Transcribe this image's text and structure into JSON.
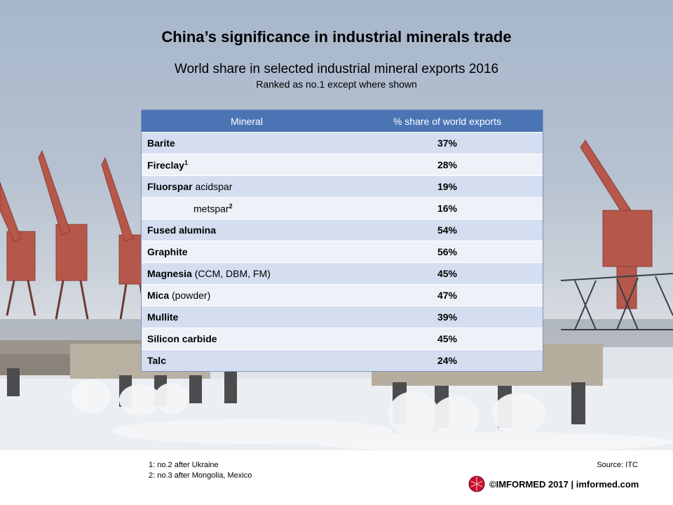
{
  "slide": {
    "title": "China’s significance in industrial minerals trade",
    "subtitle": "World share in selected industrial mineral exports 2016",
    "subsubtitle": "Ranked as no.1 except where shown"
  },
  "table": {
    "headers": [
      "Mineral",
      "% share of world exports"
    ],
    "rows": [
      {
        "bold": "Barite",
        "rest": "",
        "sup": "",
        "indent": false,
        "value": "37%"
      },
      {
        "bold": "Fireclay",
        "rest": "",
        "sup": "1",
        "indent": false,
        "value": "28%"
      },
      {
        "bold": "Fluorspar",
        "rest": " acidspar",
        "sup": "",
        "indent": false,
        "value": "19%"
      },
      {
        "bold": "",
        "rest": "metspar",
        "sup": "2",
        "indent": true,
        "value": "16%"
      },
      {
        "bold": "Fused alumina",
        "rest": "",
        "sup": "",
        "indent": false,
        "value": "54%"
      },
      {
        "bold": "Graphite",
        "rest": "",
        "sup": "",
        "indent": false,
        "value": "56%"
      },
      {
        "bold": "Magnesia",
        "rest": " (CCM, DBM, FM)",
        "sup": "",
        "indent": false,
        "value": "45%"
      },
      {
        "bold": "Mica",
        "rest": " (powder)",
        "sup": "",
        "indent": false,
        "value": "47%"
      },
      {
        "bold": "Mullite",
        "rest": "",
        "sup": "",
        "indent": false,
        "value": "39%"
      },
      {
        "bold": "Silicon carbide",
        "rest": "",
        "sup": "",
        "indent": false,
        "value": "45%"
      },
      {
        "bold": "Talc",
        "rest": "",
        "sup": "",
        "indent": false,
        "value": "24%"
      }
    ]
  },
  "footnotes": [
    "1: no.2 after Ukraine",
    "2: no.3 after Mongolia, Mexico"
  ],
  "source": "Source: ITC",
  "brand": {
    "text": "©IMFORMED 2017  | imformed.com",
    "logo_icon": "imformed-logo-icon",
    "logo_color": "#c8102e"
  },
  "colors": {
    "header_bg": "#4a74b4",
    "row_odd": "#d4def0",
    "row_even": "#eef2f8",
    "crane": "#b5574a"
  }
}
